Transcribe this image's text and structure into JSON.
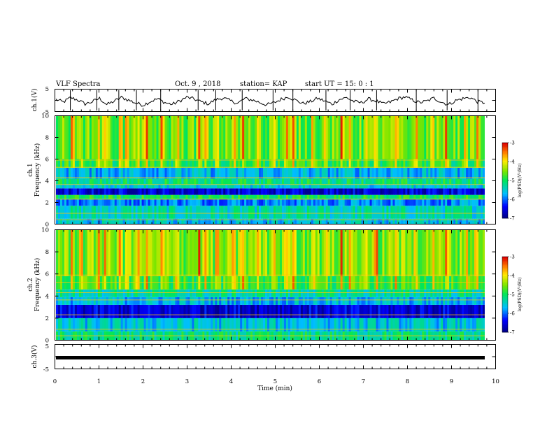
{
  "header": {
    "title": "VLF Spectra",
    "date": "Oct. 9 , 2018",
    "station": "station= KAP",
    "start": "start UT = 15: 0 : 1"
  },
  "chart_data": [
    {
      "type": "line",
      "panel": "ch1-waveform",
      "ylabel": "ch.1(V)",
      "ylim": [
        -5,
        5
      ],
      "y_ticks": [
        "5",
        "-5"
      ],
      "x_range_min": [
        0,
        9.8
      ],
      "series": [
        {
          "values": [
            0.4,
            -0.8,
            1.2,
            0.2,
            -1.6,
            -0.6,
            0.9,
            -1.9,
            -0.4,
            1.3,
            0.1,
            -1.2,
            -2.1,
            -0.5,
            0.7,
            -1.0,
            -1.8,
            -0.3,
            1.4,
            0.6,
            -0.7,
            -1.5,
            0.3,
            1.1,
            -0.2,
            -1.3,
            0.8,
            0.2,
            -0.9,
            -2.0,
            -1.1,
            0.5,
            1.6,
            0.0,
            -1.4,
            -0.6,
            0.9,
            -0.3,
            -1.7,
            0.4,
            1.2,
            -0.5,
            -1.1,
            0.6,
            -0.2,
            -1.6,
            -0.8,
            0.7,
            1.5,
            0.2,
            -1.0,
            -0.4,
            1.0,
            -0.7,
            -1.9,
            -0.1,
            0.8,
            1.3,
            -0.6,
            -1.2
          ]
        }
      ]
    },
    {
      "type": "heatmap",
      "panel": "ch1-spectrogram",
      "ylabel": "ch.1\nFrequency (kHz)",
      "ylim": [
        0,
        10
      ],
      "y_ticks": [
        "0",
        "2",
        "4",
        "6",
        "8",
        "10"
      ],
      "colorbar": {
        "range": [
          -7,
          -3
        ],
        "ticks": [
          "-3",
          "-4",
          "-5",
          "-6",
          "-7"
        ],
        "label": "log(PSD)(V²/Hz)",
        "colormap": "rainbow"
      },
      "bands_khz": [
        {
          "lo": 0.0,
          "hi": 0.5,
          "level": -5.6
        },
        {
          "lo": 0.5,
          "hi": 1.7,
          "level": -5.4
        },
        {
          "lo": 1.7,
          "hi": 2.3,
          "level": -5.9
        },
        {
          "lo": 2.3,
          "hi": 2.7,
          "level": -5.0
        },
        {
          "lo": 2.7,
          "hi": 3.3,
          "level": -6.6
        },
        {
          "lo": 3.3,
          "hi": 3.7,
          "level": -5.5
        },
        {
          "lo": 3.7,
          "hi": 4.2,
          "level": -5.1
        },
        {
          "lo": 4.2,
          "hi": 5.2,
          "level": -5.7
        },
        {
          "lo": 5.2,
          "hi": 6.0,
          "level": -5.0
        },
        {
          "lo": 6.0,
          "hi": 10.0,
          "level": -4.7
        }
      ]
    },
    {
      "type": "heatmap",
      "panel": "ch2-spectrogram",
      "ylabel": "ch.2\nFrequency (kHz)",
      "ylim": [
        0,
        10
      ],
      "y_ticks": [
        "0",
        "2",
        "4",
        "6",
        "8",
        "10"
      ],
      "colorbar": {
        "range": [
          -7,
          -3
        ],
        "ticks": [
          "-3",
          "-4",
          "-5",
          "-6",
          "-7"
        ],
        "label": "log(PSD)(V²/Hz)",
        "colormap": "rainbow"
      },
      "bands_khz": [
        {
          "lo": 0.0,
          "hi": 0.8,
          "level": -5.2
        },
        {
          "lo": 0.8,
          "hi": 2.0,
          "level": -5.6
        },
        {
          "lo": 2.0,
          "hi": 3.2,
          "level": -6.6
        },
        {
          "lo": 3.2,
          "hi": 3.9,
          "level": -5.7
        },
        {
          "lo": 3.9,
          "hi": 4.6,
          "level": -5.3
        },
        {
          "lo": 4.6,
          "hi": 5.8,
          "level": -4.9
        },
        {
          "lo": 5.8,
          "hi": 10.0,
          "level": -4.6
        }
      ]
    },
    {
      "type": "line",
      "panel": "ch3-waveform",
      "ylabel": "ch.3(V)",
      "ylim": [
        -5,
        5
      ],
      "y_ticks": [
        "5",
        "-5"
      ],
      "series": [
        {
          "values": [
            0,
            0
          ]
        }
      ]
    }
  ],
  "time_axis": {
    "xlabel": "Time (min)",
    "xlim": [
      0,
      10
    ],
    "tick_labels": [
      "0",
      "1",
      "2",
      "3",
      "4",
      "5",
      "6",
      "7",
      "8",
      "9",
      "10"
    ]
  },
  "intense_times_min": [
    0.35,
    0.55,
    0.95,
    1.1,
    1.45,
    1.6,
    1.85,
    2.05,
    2.4,
    2.75,
    3.25,
    3.4,
    3.65,
    4.05,
    4.25,
    4.6,
    4.95,
    5.25,
    5.4,
    5.85,
    6.15,
    6.5,
    6.7,
    7.05,
    7.3,
    7.75,
    8.2,
    8.6,
    8.9,
    9.35,
    9.6
  ],
  "colors": {
    "frame": "#000000",
    "background": "#ffffff"
  }
}
